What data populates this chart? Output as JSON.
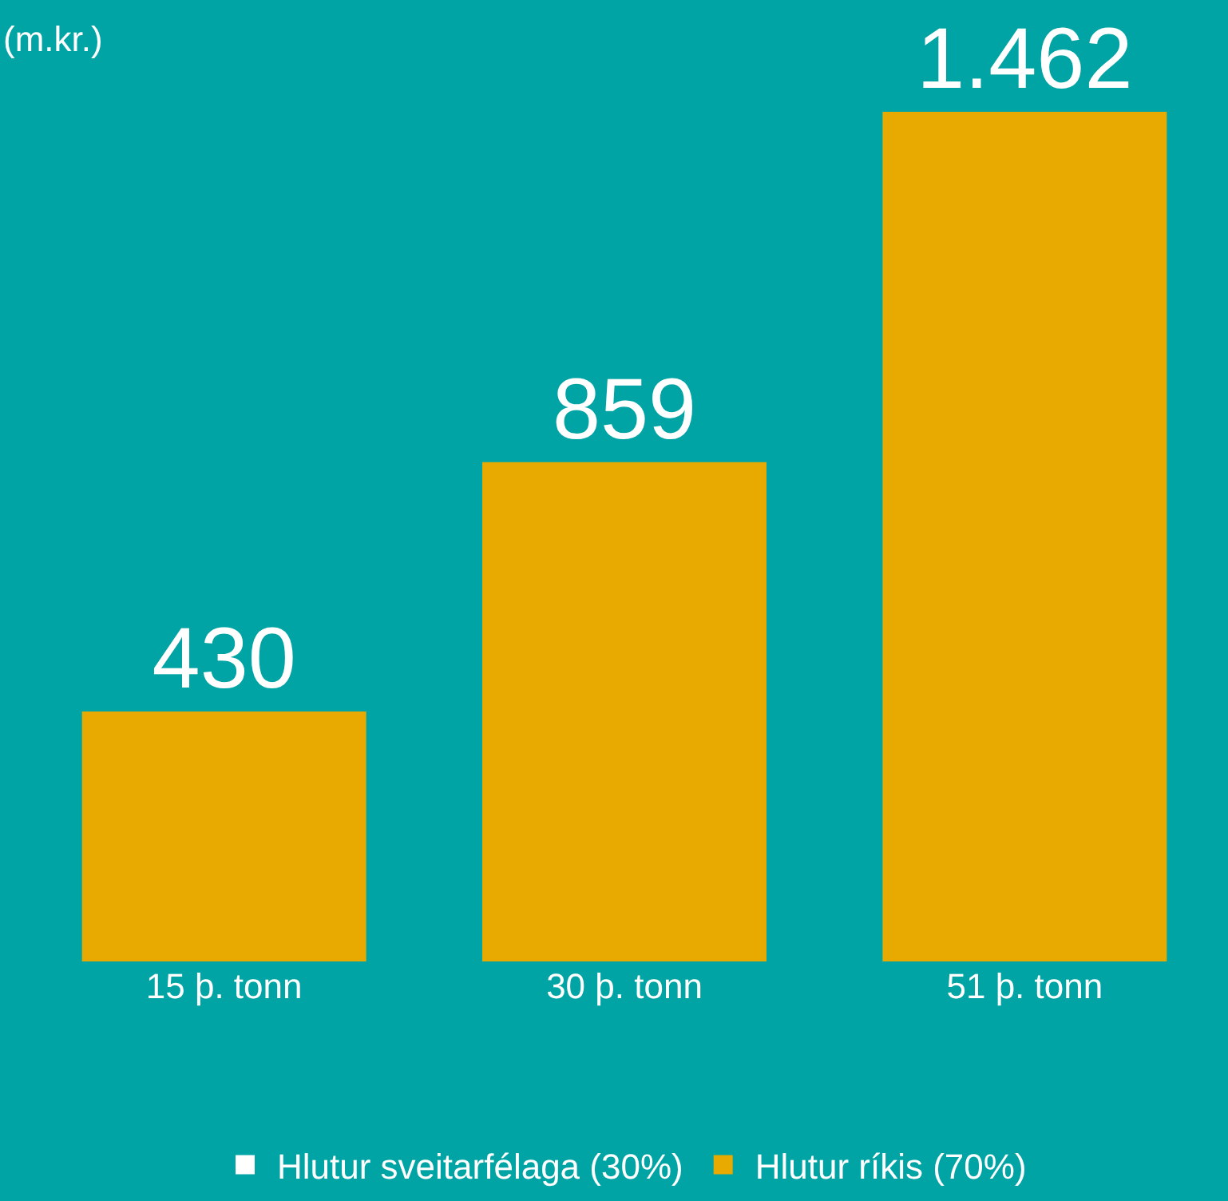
{
  "chart_data": {
    "type": "bar",
    "ylabel": "(m.kr.)",
    "categories": [
      "15 þ. tonn",
      "30 þ. tonn",
      "51 þ. tonn"
    ],
    "series": [
      {
        "name": "Hlutur sveitarfélaga (30%)",
        "color": "#ffffff",
        "values": [
          null,
          null,
          null
        ]
      },
      {
        "name": "Hlutur ríkis (70%)",
        "color": "#e8aa00",
        "values": [
          430,
          859,
          1462
        ],
        "value_labels": [
          "430",
          "859",
          "1.462"
        ]
      }
    ],
    "legend": "bottom"
  }
}
